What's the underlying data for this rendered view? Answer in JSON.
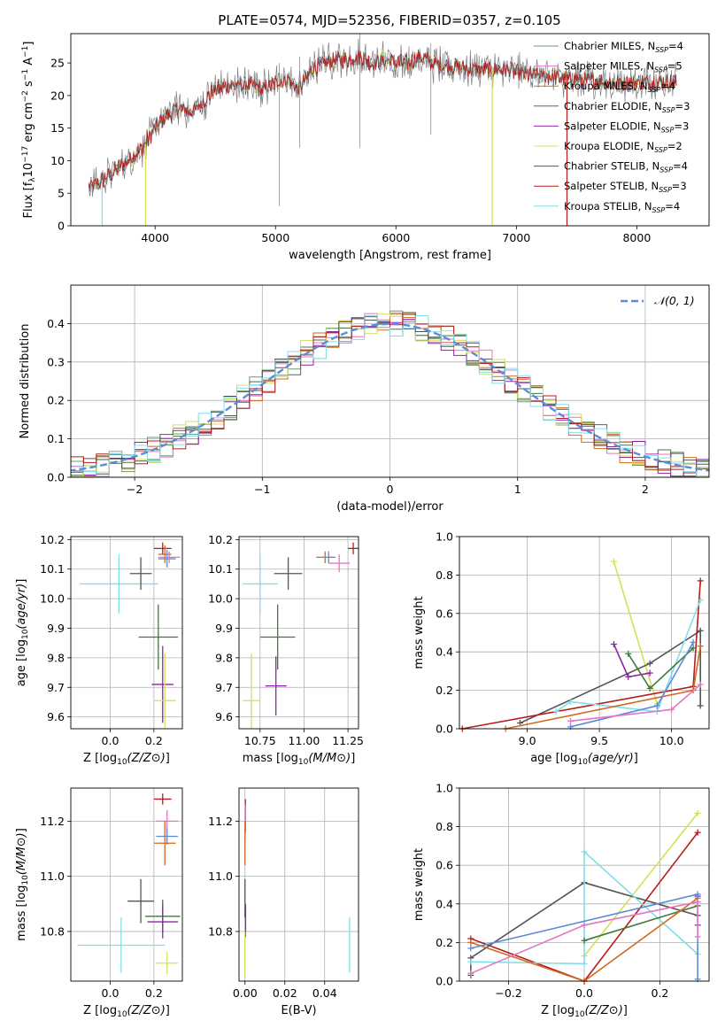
{
  "figure": {
    "title": "PLATE=0574, MJD=52356, FIBERID=0357, z=0.105"
  },
  "colors": {
    "Chabrier MILES": "#6b9a6b",
    "Salpeter MILES": "#e377c2",
    "Kroupa MILES": "#d2691e",
    "Chabrier ELODIE": "#3d7a3d",
    "Salpeter ELODIE": "#8e24aa",
    "Kroupa ELODIE": "#d4e157",
    "Chabrier STELIB": "#555555",
    "Salpeter STELIB": "#b71c1c",
    "Kroupa STELIB": "#80deea",
    "blue": "#5b8bd9",
    "data": "#808080",
    "gaussian": "#5b8bd9"
  },
  "chart_data": [
    {
      "id": "spectrum",
      "type": "line",
      "xlabel": "wavelength [Angstrom, rest frame]",
      "ylabel": "Flux [f_λ 10^-17 erg cm^-2 s^-1 A^-1]",
      "xlim": [
        3300,
        8600
      ],
      "ylim": [
        0,
        29.5
      ],
      "xticks": [
        4000,
        5000,
        6000,
        7000,
        8000
      ],
      "yticks": [
        0,
        5,
        10,
        15,
        20,
        25
      ],
      "grid": false,
      "legend_position": "right",
      "legend": [
        {
          "label": "Chabrier MILES, N",
          "sub": "SSP",
          "suffix": "=4"
        },
        {
          "label": "Salpeter MILES, N",
          "sub": "SSP",
          "suffix": "=5"
        },
        {
          "label": "Kroupa MILES, N",
          "sub": "SSP",
          "suffix": "=4"
        },
        {
          "label": "Chabrier ELODIE, N",
          "sub": "SSP",
          "suffix": "=3"
        },
        {
          "label": "Salpeter ELODIE, N",
          "sub": "SSP",
          "suffix": "=3"
        },
        {
          "label": "Kroupa ELODIE, N",
          "sub": "SSP",
          "suffix": "=2"
        },
        {
          "label": "Chabrier STELIB, N",
          "sub": "SSP",
          "suffix": "=4"
        },
        {
          "label": "Salpeter STELIB, N",
          "sub": "SSP",
          "suffix": "=3"
        },
        {
          "label": "Kroupa STELIB, N",
          "sub": "SSP",
          "suffix": "=4"
        }
      ],
      "continuum": [
        [
          3450,
          6
        ],
        [
          3500,
          6.2
        ],
        [
          3600,
          7.5
        ],
        [
          3700,
          9
        ],
        [
          3800,
          10.5
        ],
        [
          3900,
          12
        ],
        [
          4000,
          15
        ],
        [
          4100,
          17
        ],
        [
          4200,
          18
        ],
        [
          4300,
          17.5
        ],
        [
          4400,
          19
        ],
        [
          4500,
          21
        ],
        [
          4600,
          21.5
        ],
        [
          4700,
          21.5
        ],
        [
          4800,
          21.5
        ],
        [
          4900,
          21
        ],
        [
          5000,
          22
        ],
        [
          5100,
          22.5
        ],
        [
          5200,
          21
        ],
        [
          5300,
          24
        ],
        [
          5400,
          25
        ],
        [
          5500,
          25.5
        ],
        [
          5600,
          25.5
        ],
        [
          5700,
          26
        ],
        [
          5800,
          25
        ],
        [
          5900,
          25.5
        ],
        [
          6000,
          25
        ],
        [
          6100,
          25
        ],
        [
          6200,
          26
        ],
        [
          6300,
          25
        ],
        [
          6400,
          24.5
        ],
        [
          6500,
          24.5
        ],
        [
          6600,
          24
        ],
        [
          6700,
          24
        ],
        [
          6800,
          24
        ],
        [
          6900,
          24
        ],
        [
          7000,
          23.5
        ],
        [
          7200,
          23
        ],
        [
          7500,
          22.5
        ],
        [
          7800,
          22
        ],
        [
          8100,
          22
        ],
        [
          8300,
          22
        ]
      ],
      "drops": [
        {
          "series": "Kroupa STELIB",
          "x": 3560
        },
        {
          "series": "Kroupa ELODIE",
          "x": 3920
        },
        {
          "series": "Kroupa ELODIE",
          "x": 6800
        },
        {
          "series": "Salpeter STELIB",
          "x": 7420
        }
      ]
    },
    {
      "id": "residuals",
      "type": "step",
      "xlabel": "(data-model)/error",
      "ylabel": "Normed distribution",
      "xlim": [
        -2.5,
        2.5
      ],
      "ylim": [
        0,
        0.5
      ],
      "xticks": [
        -2,
        -1,
        0,
        1,
        2
      ],
      "xticklabels": [
        "−2",
        "−1",
        "0",
        "1",
        "2"
      ],
      "yticks": [
        0.0,
        0.1,
        0.2,
        0.3,
        0.4
      ],
      "yticklabels": [
        "0.0",
        "0.1",
        "0.2",
        "0.3",
        "0.4"
      ],
      "grid": true,
      "legend_position": "top-right",
      "legend_label": "𝒩(0, 1)",
      "bin_width": 0.1,
      "series_names": [
        "Chabrier MILES",
        "Salpeter MILES",
        "Kroupa MILES",
        "Chabrier ELODIE",
        "Salpeter ELODIE",
        "Kroupa ELODIE",
        "Chabrier STELIB",
        "Salpeter STELIB",
        "Kroupa STELIB"
      ]
    },
    {
      "id": "age-vs-Z",
      "type": "errorbar",
      "xlabel": "Z [log10(Z/Z⊙)]",
      "ylabel": "age [log10(age/yr)]",
      "xlim": [
        -0.18,
        0.33
      ],
      "ylim": [
        9.56,
        10.21
      ],
      "xticks": [
        0.0,
        0.2
      ],
      "xticklabels": [
        "0.0",
        "0.2"
      ],
      "yticks": [
        9.6,
        9.7,
        9.8,
        9.9,
        10.0,
        10.1,
        10.2
      ],
      "yticklabels": [
        "9.6",
        "9.7",
        "9.8",
        "9.9",
        "10.0",
        "10.1",
        "10.2"
      ],
      "grid": true,
      "points": [
        {
          "series": "Kroupa STELIB",
          "x": 0.04,
          "y": 10.05,
          "xerr": 0.18,
          "yerr": 0.1
        },
        {
          "series": "Chabrier STELIB",
          "x": 0.14,
          "y": 10.085,
          "xerr": 0.05,
          "yerr": 0.055
        },
        {
          "series": "Salpeter STELIB",
          "x": 0.24,
          "y": 10.17,
          "xerr": 0.04,
          "yerr": 0.02
        },
        {
          "series": "Kroupa MILES",
          "x": 0.25,
          "y": 10.15,
          "xerr": 0.03,
          "yerr": 0.03
        },
        {
          "series": "blue",
          "x": 0.26,
          "y": 10.135,
          "xerr": 0.04,
          "yerr": 0.03
        },
        {
          "series": "Salpeter MILES",
          "x": 0.27,
          "y": 10.14,
          "xerr": 0.05,
          "yerr": 0.02
        },
        {
          "series": "Chabrier ELODIE",
          "x": 0.22,
          "y": 9.87,
          "xerr": 0.09,
          "yerr": 0.11
        },
        {
          "series": "Salpeter ELODIE",
          "x": 0.24,
          "y": 9.71,
          "xerr": 0.05,
          "yerr": 0.13
        },
        {
          "series": "Kroupa ELODIE",
          "x": 0.25,
          "y": 9.655,
          "xerr": 0.05,
          "yerr": 0.16
        }
      ]
    },
    {
      "id": "age-vs-mass",
      "type": "errorbar",
      "xlabel": "mass [log10(M/M⊙)]",
      "ylabel": "",
      "xlim": [
        10.63,
        11.31
      ],
      "ylim": [
        9.56,
        10.21
      ],
      "xticks": [
        10.75,
        11.0,
        11.25
      ],
      "xticklabels": [
        "10.75",
        "11.00",
        "11.25"
      ],
      "yticks": [
        9.6,
        9.7,
        9.8,
        9.9,
        10.0,
        10.1,
        10.2
      ],
      "yticklabels": [
        "9.6",
        "9.7",
        "9.8",
        "9.9",
        "10.0",
        "10.1",
        "10.2"
      ],
      "grid": true,
      "points": [
        {
          "series": "Kroupa STELIB",
          "x": 10.75,
          "y": 10.05,
          "xerr": 0.1,
          "yerr": 0.1
        },
        {
          "series": "Chabrier STELIB",
          "x": 10.91,
          "y": 10.085,
          "xerr": 0.08,
          "yerr": 0.055
        },
        {
          "series": "Salpeter STELIB",
          "x": 11.28,
          "y": 10.17,
          "xerr": 0.03,
          "yerr": 0.02
        },
        {
          "series": "Kroupa MILES",
          "x": 11.12,
          "y": 10.14,
          "xerr": 0.05,
          "yerr": 0.02
        },
        {
          "series": "blue",
          "x": 11.14,
          "y": 10.14,
          "xerr": 0.04,
          "yerr": 0.02
        },
        {
          "series": "Salpeter MILES",
          "x": 11.2,
          "y": 10.12,
          "xerr": 0.06,
          "yerr": 0.03
        },
        {
          "series": "Chabrier ELODIE",
          "x": 10.85,
          "y": 9.87,
          "xerr": 0.1,
          "yerr": 0.11
        },
        {
          "series": "Salpeter ELODIE",
          "x": 10.84,
          "y": 9.705,
          "xerr": 0.06,
          "yerr": 0.1
        },
        {
          "series": "Kroupa ELODIE",
          "x": 10.7,
          "y": 9.655,
          "xerr": 0.05,
          "yerr": 0.16
        }
      ]
    },
    {
      "id": "weight-vs-age",
      "type": "line",
      "xlabel": "age [log10(age/yr)]",
      "ylabel": "mass weight",
      "xlim": [
        8.53,
        10.26
      ],
      "ylim": [
        0,
        1
      ],
      "xticks": [
        9.0,
        9.5,
        10.0
      ],
      "xticklabels": [
        "9.0",
        "9.5",
        "10.0"
      ],
      "yticks": [
        0.0,
        0.2,
        0.4,
        0.6,
        0.8,
        1.0
      ],
      "yticklabels": [
        "0.0",
        "0.2",
        "0.4",
        "0.6",
        "0.8",
        "1.0"
      ],
      "grid": true,
      "series": [
        {
          "series": "Kroupa ELODIE",
          "points": [
            [
              9.6,
              0.87
            ],
            [
              9.9,
              0.13
            ]
          ]
        },
        {
          "series": "Chabrier STELIB",
          "points": [
            [
              8.95,
              0.03
            ],
            [
              9.85,
              0.34
            ],
            [
              10.2,
              0.51
            ],
            [
              10.2,
              0.12
            ]
          ]
        },
        {
          "series": "Salpeter STELIB",
          "points": [
            [
              8.55,
              0.0
            ],
            [
              10.15,
              0.22
            ],
            [
              10.2,
              0.77
            ]
          ]
        },
        {
          "series": "Kroupa STELIB",
          "points": [
            [
              9.2,
              0.09
            ],
            [
              9.3,
              0.14
            ],
            [
              9.9,
              0.09
            ],
            [
              10.2,
              0.67
            ]
          ]
        },
        {
          "series": "Salpeter ELODIE",
          "points": [
            [
              9.6,
              0.44
            ],
            [
              9.7,
              0.27
            ],
            [
              9.85,
              0.29
            ]
          ]
        },
        {
          "series": "Chabrier ELODIE",
          "points": [
            [
              9.7,
              0.39
            ],
            [
              9.85,
              0.21
            ],
            [
              10.15,
              0.42
            ]
          ]
        },
        {
          "series": "Kroupa MILES",
          "points": [
            [
              8.85,
              0.0
            ],
            [
              10.15,
              0.2
            ],
            [
              10.2,
              0.43
            ]
          ]
        },
        {
          "series": "blue",
          "points": [
            [
              9.3,
              0.01
            ],
            [
              9.9,
              0.12
            ],
            [
              10.15,
              0.45
            ]
          ]
        },
        {
          "series": "Salpeter MILES",
          "points": [
            [
              9.3,
              0.04
            ],
            [
              10.0,
              0.1
            ],
            [
              10.2,
              0.23
            ]
          ]
        }
      ]
    },
    {
      "id": "mass-vs-Z",
      "type": "errorbar",
      "xlabel": "Z [log10(Z/Z⊙)]",
      "ylabel": "mass [log10(M/M⊙)]",
      "xlim": [
        -0.18,
        0.33
      ],
      "ylim": [
        10.62,
        11.32
      ],
      "xticks": [
        0.0,
        0.2
      ],
      "xticklabels": [
        "0.0",
        "0.2"
      ],
      "yticks": [
        10.8,
        11.0,
        11.2
      ],
      "yticklabels": [
        "10.8",
        "11.0",
        "11.2"
      ],
      "grid": true,
      "points": [
        {
          "series": "Salpeter STELIB",
          "x": 0.24,
          "y": 11.28,
          "xerr": 0.04,
          "yerr": 0.02
        },
        {
          "series": "Salpeter MILES",
          "x": 0.26,
          "y": 11.2,
          "xerr": 0.05,
          "yerr": 0.04
        },
        {
          "series": "blue",
          "x": 0.26,
          "y": 11.145,
          "xerr": 0.05,
          "yerr": 0.03
        },
        {
          "series": "Kroupa MILES",
          "x": 0.25,
          "y": 11.12,
          "xerr": 0.05,
          "yerr": 0.08
        },
        {
          "series": "Chabrier STELIB",
          "x": 0.14,
          "y": 10.91,
          "xerr": 0.06,
          "yerr": 0.08
        },
        {
          "series": "Chabrier ELODIE",
          "x": 0.24,
          "y": 10.855,
          "xerr": 0.08,
          "yerr": 0.06
        },
        {
          "series": "Salpeter ELODIE",
          "x": 0.24,
          "y": 10.835,
          "xerr": 0.07,
          "yerr": 0.06
        },
        {
          "series": "Kroupa STELIB",
          "x": 0.05,
          "y": 10.75,
          "xerr": 0.2,
          "yerr": 0.1
        },
        {
          "series": "Kroupa ELODIE",
          "x": 0.26,
          "y": 10.685,
          "xerr": 0.05,
          "yerr": 0.04
        }
      ]
    },
    {
      "id": "mass-vs-ebv",
      "type": "errorbar",
      "xlabel": "E(B-V)",
      "ylabel": "",
      "xlim": [
        -0.003,
        0.057
      ],
      "ylim": [
        10.62,
        11.32
      ],
      "xticks": [
        0.0,
        0.02,
        0.04
      ],
      "xticklabels": [
        "0.00",
        "0.02",
        "0.04"
      ],
      "yticks": [
        10.8,
        11.0,
        11.2
      ],
      "yticklabels": [
        "10.8",
        "11.0",
        "11.2"
      ],
      "grid": true,
      "points": [
        {
          "series": "Salpeter STELIB",
          "x": 0.0002,
          "y": 11.22,
          "xerr": 0.0,
          "yerr": 0.06
        },
        {
          "series": "Salpeter MILES",
          "x": 0.0001,
          "y": 11.2,
          "xerr": 0.0,
          "yerr": 0.06
        },
        {
          "series": "Kroupa MILES",
          "x": 0.0,
          "y": 11.12,
          "xerr": 0.0,
          "yerr": 0.08
        },
        {
          "series": "Chabrier STELIB",
          "x": 0.0,
          "y": 10.92,
          "xerr": 0.0,
          "yerr": 0.07
        },
        {
          "series": "Salpeter ELODIE",
          "x": 0.0003,
          "y": 10.84,
          "xerr": 0.0,
          "yerr": 0.06
        },
        {
          "series": "Kroupa ELODIE",
          "x": 0.0,
          "y": 10.72,
          "xerr": 0.0,
          "yerr": 0.08
        },
        {
          "series": "Kroupa STELIB",
          "x": 0.0525,
          "y": 10.75,
          "xerr": 0.0,
          "yerr": 0.1
        }
      ]
    },
    {
      "id": "weight-vs-Z",
      "type": "line",
      "xlabel": "Z [log10(Z/Z⊙)]",
      "ylabel": "mass weight",
      "xlim": [
        -0.33,
        0.33
      ],
      "ylim": [
        0,
        1
      ],
      "xticks": [
        -0.2,
        0.0,
        0.2
      ],
      "xticklabels": [
        "−0.2",
        "0.0",
        "0.2"
      ],
      "yticks": [
        0.0,
        0.2,
        0.4,
        0.6,
        0.8,
        1.0
      ],
      "yticklabels": [
        "0.0",
        "0.2",
        "0.4",
        "0.6",
        "0.8",
        "1.0"
      ],
      "grid": true,
      "series": [
        {
          "series": "Kroupa ELODIE",
          "points": [
            [
              0.0,
              0.13
            ],
            [
              0.3,
              0.87
            ]
          ]
        },
        {
          "series": "Salpeter STELIB",
          "points": [
            [
              -0.3,
              0.22
            ],
            [
              0.0,
              0.0
            ],
            [
              0.3,
              0.77
            ]
          ]
        },
        {
          "series": "Chabrier STELIB",
          "points": [
            [
              -0.3,
              0.03
            ],
            [
              -0.3,
              0.12
            ],
            [
              0.0,
              0.51
            ],
            [
              0.3,
              0.34
            ]
          ]
        },
        {
          "series": "Kroupa STELIB",
          "points": [
            [
              -0.3,
              0.1
            ],
            [
              0.0,
              0.09
            ],
            [
              0.0,
              0.67
            ],
            [
              0.3,
              0.14
            ]
          ]
        },
        {
          "series": "Salpeter ELODIE",
          "points": [
            [
              0.3,
              0.29
            ],
            [
              0.3,
              0.44
            ]
          ]
        },
        {
          "series": "Chabrier ELODIE",
          "points": [
            [
              0.0,
              0.21
            ],
            [
              0.3,
              0.39
            ]
          ]
        },
        {
          "series": "Kroupa MILES",
          "points": [
            [
              -0.3,
              0.2
            ],
            [
              0.0,
              0.0
            ],
            [
              0.3,
              0.43
            ]
          ]
        },
        {
          "series": "blue",
          "points": [
            [
              -0.3,
              0.17
            ],
            [
              0.3,
              0.45
            ],
            [
              0.3,
              0.01
            ]
          ]
        },
        {
          "series": "Salpeter MILES",
          "points": [
            [
              -0.3,
              0.04
            ],
            [
              0.0,
              0.29
            ],
            [
              0.3,
              0.41
            ],
            [
              0.3,
              0.23
            ]
          ]
        }
      ]
    }
  ]
}
